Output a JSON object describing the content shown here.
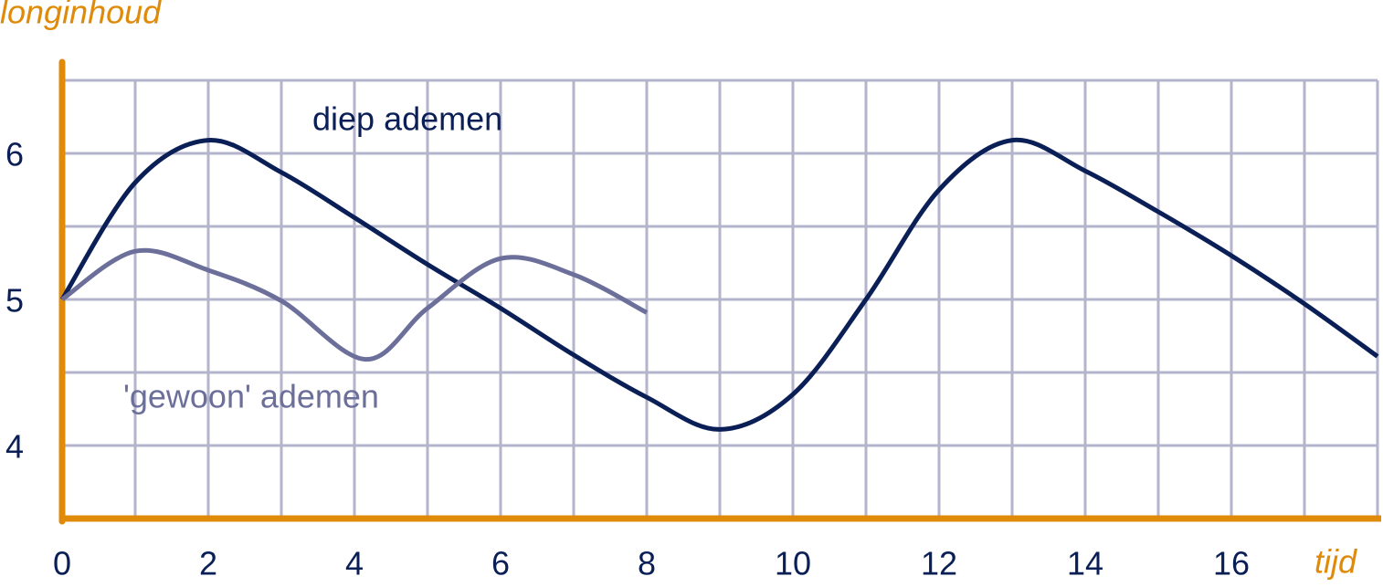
{
  "chart_data": {
    "type": "line",
    "ylabel": "longinhoud",
    "xlabel": "tijd",
    "xlim": [
      0,
      18
    ],
    "xticks": [
      0,
      2,
      4,
      6,
      8,
      10,
      12,
      14,
      16
    ],
    "xminor": [
      1,
      3,
      5,
      7,
      9,
      11,
      13,
      15,
      17,
      18
    ],
    "ylim": [
      3.5,
      6.6
    ],
    "yticks": [
      4,
      5,
      6
    ],
    "yminor": [
      4.5,
      5.5,
      6.5
    ],
    "grid": true,
    "grid_color": "#b4b4cc",
    "axis_color": "#e08a0a",
    "series": [
      {
        "name": "diep ademen",
        "color": "#0b1f57",
        "x": [
          0,
          1,
          2,
          3,
          4,
          5,
          6,
          7,
          8,
          9,
          10,
          11,
          12,
          13,
          14,
          15,
          16,
          17,
          18
        ],
        "values": [
          5.0,
          5.8,
          6.09,
          5.87,
          5.56,
          5.24,
          4.94,
          4.62,
          4.33,
          4.11,
          4.35,
          5.0,
          5.75,
          6.09,
          5.88,
          5.6,
          5.3,
          4.97,
          4.61
        ]
      },
      {
        "name": "'gewoon' ademen",
        "color": "#6b6f9a",
        "x": [
          0,
          1,
          2,
          3,
          4.15,
          5,
          6,
          7,
          8
        ],
        "values": [
          5.0,
          5.33,
          5.2,
          4.99,
          4.59,
          4.94,
          5.28,
          5.17,
          4.91
        ]
      }
    ]
  }
}
